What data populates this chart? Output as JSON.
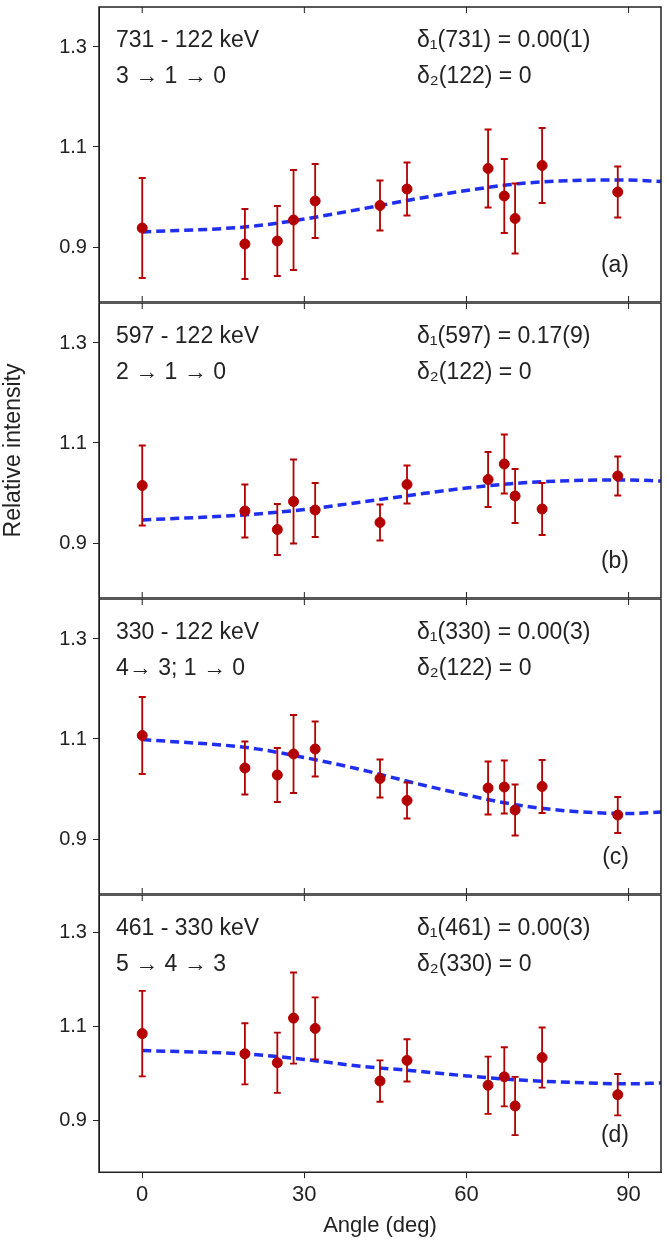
{
  "chart_data": [
    {
      "type": "scatter",
      "annotations": [
        "731 - 122 keV",
        "3 → 1 → 0",
        "δ₁(731) = 0.00(1)",
        "δ₂(122) = 0",
        "(a)"
      ],
      "x": [
        0,
        19,
        25,
        28,
        32,
        44,
        49,
        64,
        67,
        69,
        74,
        88
      ],
      "xlim": [
        -8,
        96
      ],
      "xticks": [
        0,
        30,
        60,
        90
      ],
      "ylim": [
        0.79,
        1.38
      ],
      "yticks": [
        0.9,
        1.1,
        1.3
      ],
      "tick_labels": "y",
      "grid": false,
      "legend": false,
      "series": [
        {
          "type": "scatter",
          "marker": "circle",
          "color": "#b30000",
          "values": [
            0.938,
            0.906,
            0.912,
            0.954,
            0.992,
            0.983,
            1.016,
            1.057,
            1.002,
            0.957,
            1.063,
            1.01
          ],
          "errors": [
            0.1,
            0.07,
            0.07,
            0.1,
            0.074,
            0.05,
            0.053,
            0.078,
            0.074,
            0.07,
            0.075,
            0.051
          ]
        },
        {
          "type": "line",
          "marker": "none",
          "line_style": "dashed",
          "color": "#1f2fef",
          "x": [
            0,
            20,
            30,
            40,
            50,
            60,
            70,
            80,
            90,
            96
          ],
          "values": [
            0.93,
            0.941,
            0.956,
            0.975,
            0.995,
            1.013,
            1.027,
            1.033,
            1.034,
            1.031
          ]
        }
      ]
    },
    {
      "type": "scatter",
      "ylabel": "Relative intensity",
      "annotations": [
        "597 - 122 keV",
        "2 → 1 → 0",
        "δ₁(597) = 0.17(9)",
        "δ₂(122) = 0",
        "(b)"
      ],
      "x": [
        0,
        19,
        25,
        28,
        32,
        44,
        49,
        64,
        67,
        69,
        74,
        88
      ],
      "xlim": [
        -8,
        96
      ],
      "xticks": [
        0,
        30,
        60,
        90
      ],
      "ylim": [
        0.79,
        1.38
      ],
      "yticks": [
        0.9,
        1.1,
        1.3
      ],
      "tick_labels": "y",
      "grid": false,
      "legend": false,
      "series": [
        {
          "type": "scatter",
          "marker": "circle",
          "color": "#b30000",
          "values": [
            1.015,
            0.964,
            0.927,
            0.983,
            0.966,
            0.941,
            1.017,
            1.027,
            1.058,
            0.994,
            0.968,
            1.034
          ],
          "errors": [
            0.08,
            0.053,
            0.051,
            0.084,
            0.054,
            0.036,
            0.038,
            0.055,
            0.059,
            0.054,
            0.052,
            0.039
          ]
        },
        {
          "type": "line",
          "marker": "none",
          "line_style": "dashed",
          "color": "#1f2fef",
          "x": [
            0,
            20,
            30,
            40,
            50,
            60,
            70,
            80,
            90,
            96
          ],
          "values": [
            0.946,
            0.957,
            0.967,
            0.981,
            0.996,
            1.01,
            1.02,
            1.025,
            1.026,
            1.024
          ]
        }
      ]
    },
    {
      "type": "scatter",
      "annotations": [
        "330 - 122 keV",
        "4→ 3; 1 → 0",
        "δ₁(330) = 0.00(3)",
        "δ₂(122) = 0",
        "(c)"
      ],
      "x": [
        0,
        19,
        25,
        28,
        32,
        44,
        49,
        64,
        67,
        69,
        74,
        88
      ],
      "xlim": [
        -8,
        96
      ],
      "xticks": [
        0,
        30,
        60,
        90
      ],
      "ylim": [
        0.79,
        1.38
      ],
      "yticks": [
        0.9,
        1.1,
        1.3
      ],
      "tick_labels": "y",
      "grid": false,
      "legend": false,
      "series": [
        {
          "type": "scatter",
          "marker": "circle",
          "color": "#b30000",
          "values": [
            1.107,
            1.042,
            1.028,
            1.07,
            1.08,
            1.021,
            0.977,
            1.002,
            1.004,
            0.958,
            1.005,
            0.948
          ],
          "errors": [
            0.077,
            0.053,
            0.054,
            0.078,
            0.055,
            0.038,
            0.036,
            0.053,
            0.053,
            0.051,
            0.053,
            0.036
          ]
        },
        {
          "type": "line",
          "marker": "none",
          "line_style": "dashed",
          "color": "#1f2fef",
          "x": [
            0,
            20,
            30,
            40,
            50,
            60,
            70,
            80,
            90,
            96
          ],
          "values": [
            1.099,
            1.082,
            1.063,
            1.04,
            1.013,
            0.988,
            0.967,
            0.955,
            0.951,
            0.954
          ]
        }
      ]
    },
    {
      "type": "scatter",
      "xlabel": "Angle (deg)",
      "annotations": [
        "461 - 330 keV",
        "5 → 4 → 3",
        "δ₁(461) = 0.00(3)",
        "δ₂(330) = 0",
        "(d)"
      ],
      "x": [
        0,
        19,
        25,
        28,
        32,
        44,
        49,
        64,
        67,
        69,
        74,
        88
      ],
      "xlim": [
        -8,
        96
      ],
      "xticks": [
        0,
        30,
        60,
        90
      ],
      "ylim": [
        0.79,
        1.38
      ],
      "yticks": [
        0.9,
        1.1,
        1.3
      ],
      "grid": false,
      "legend": false,
      "series": [
        {
          "type": "scatter",
          "marker": "circle",
          "color": "#b30000",
          "values": [
            1.085,
            1.042,
            1.023,
            1.118,
            1.096,
            0.984,
            1.028,
            0.975,
            0.993,
            0.931,
            1.034,
            0.955
          ],
          "errors": [
            0.091,
            0.065,
            0.064,
            0.097,
            0.066,
            0.044,
            0.045,
            0.061,
            0.063,
            0.062,
            0.064,
            0.044
          ]
        },
        {
          "type": "line",
          "marker": "none",
          "line_style": "dashed",
          "color": "#1f2fef",
          "x": [
            0,
            20,
            30,
            40,
            50,
            60,
            70,
            80,
            90,
            96
          ],
          "values": [
            1.049,
            1.041,
            1.03,
            1.016,
            1.006,
            0.995,
            0.986,
            0.981,
            0.978,
            0.98
          ]
        }
      ]
    }
  ]
}
